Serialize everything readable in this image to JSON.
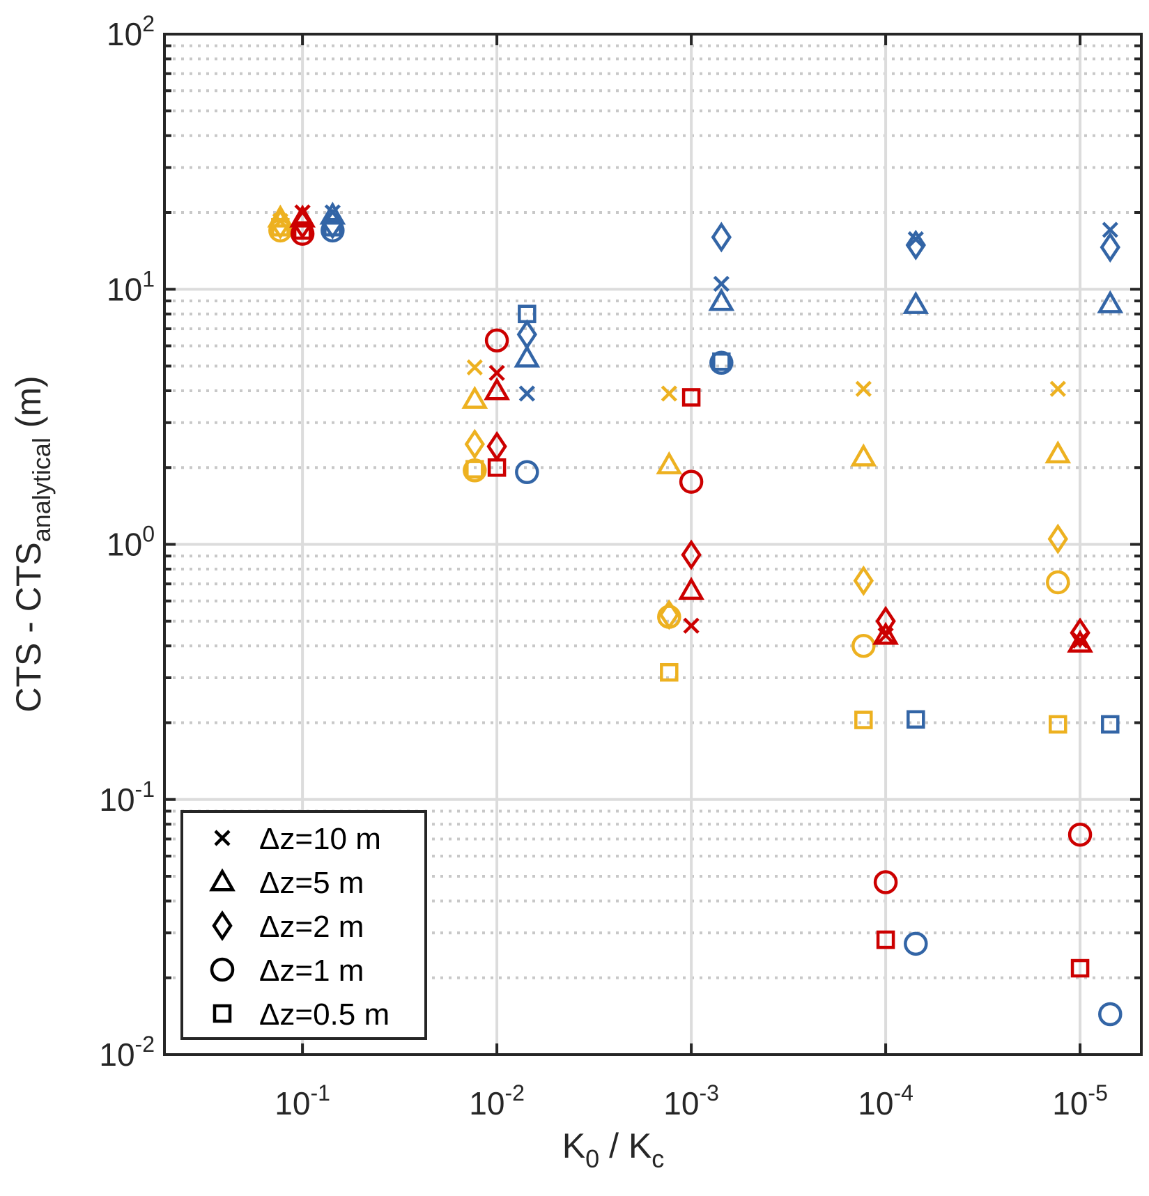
{
  "chart_data": {
    "type": "scatter",
    "title": "",
    "xlabel": {
      "main": "K",
      "sub1": "0",
      "mid": " / K",
      "sub2": "c"
    },
    "ylabel": {
      "main": "CTS - CTS",
      "sub": "analytical",
      "unit": " (m)"
    },
    "xscale": "log",
    "yscale": "log",
    "x_reversed": true,
    "xlim": [
      0.513,
      4.84e-06
    ],
    "ylim": [
      0.01,
      100
    ],
    "grid": "on (major solid, minor dotted on y)",
    "x_ticks": [
      {
        "base": "10",
        "exp": "-1",
        "value": 0.1
      },
      {
        "base": "10",
        "exp": "-2",
        "value": 0.01
      },
      {
        "base": "10",
        "exp": "-3",
        "value": 0.001
      },
      {
        "base": "10",
        "exp": "-4",
        "value": 0.0001
      },
      {
        "base": "10",
        "exp": "-5",
        "value": 1e-05
      }
    ],
    "y_ticks": [
      {
        "base": "10",
        "exp": "2",
        "value": 100
      },
      {
        "base": "10",
        "exp": "1",
        "value": 10
      },
      {
        "base": "10",
        "exp": "0",
        "value": 1
      },
      {
        "base": "10",
        "exp": "-1",
        "value": 0.1
      },
      {
        "base": "10",
        "exp": "-2",
        "value": 0.01
      }
    ],
    "legend": {
      "placement": "bottom-left",
      "entries": [
        {
          "marker": "x",
          "label": "Δz=10 m"
        },
        {
          "marker": "triangle",
          "label": "Δz=5 m"
        },
        {
          "marker": "diamond",
          "label": "Δz=2 m"
        },
        {
          "marker": "circle",
          "label": "Δz=1 m"
        },
        {
          "marker": "square",
          "label": "Δz=0.5 m"
        }
      ]
    },
    "colors": {
      "yellow": "#EDB120",
      "red": "#CC0000",
      "blue": "#3365A6"
    },
    "series": [
      {
        "color": "yellow",
        "x": [
          0.13,
          0.013,
          0.0013,
          0.00013,
          1.3e-05
        ],
        "markers": {
          "x": [
            18.5,
            4.94,
            3.9,
            4.07,
            4.07
          ],
          "triangle": [
            19,
            3.7,
            2.05,
            2.2,
            2.26
          ],
          "diamond": [
            18,
            2.47,
            0.53,
            0.72,
            1.05
          ],
          "circle": [
            17,
            1.95,
            0.52,
            0.4,
            0.71
          ],
          "square": [
            17.5,
            1.97,
            0.315,
            0.205,
            0.197
          ]
        }
      },
      {
        "color": "red",
        "x": [
          0.1,
          0.01,
          0.001,
          0.0001,
          1e-05
        ],
        "markers": {
          "x": [
            20,
            4.7,
            0.48,
            0.44,
            0.42
          ],
          "triangle": [
            19,
            4.0,
            0.66,
            0.44,
            0.41
          ],
          "diamond": [
            18,
            2.42,
            0.91,
            0.5,
            0.45
          ],
          "circle": [
            16.5,
            6.3,
            1.76,
            0.0474,
            0.0728
          ],
          "square": [
            17,
            2.0,
            3.77,
            0.0282,
            0.0218
          ]
        }
      },
      {
        "color": "blue",
        "x": [
          0.07,
          0.007,
          0.0007,
          7e-05,
          7e-06
        ],
        "markers": {
          "x": [
            20,
            3.9,
            10.5,
            15.7,
            17.1
          ],
          "triangle": [
            19.5,
            5.37,
            8.95,
            8.7,
            8.77
          ],
          "diamond": [
            18,
            6.65,
            16,
            14.9,
            14.6
          ],
          "circle": [
            17,
            1.92,
            5.15,
            0.0272,
            0.0144
          ],
          "square": [
            17.5,
            8.0,
            5.2,
            0.206,
            0.197
          ]
        }
      }
    ]
  }
}
